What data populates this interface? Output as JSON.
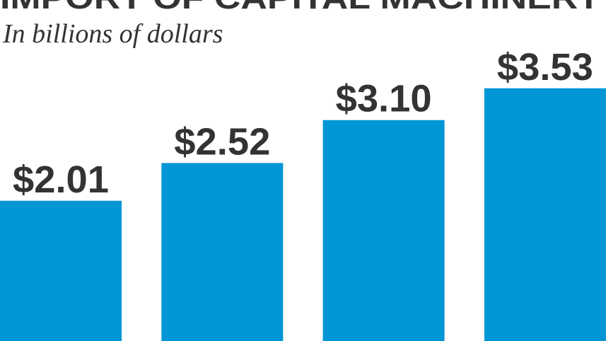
{
  "chart_data": {
    "type": "bar",
    "title": "IMPORT OF CAPITAL MACHINERY",
    "subtitle": "In billions of dollars",
    "values": [
      2.01,
      2.52,
      3.1,
      3.53
    ],
    "value_labels": [
      "$2.01",
      "$2.52",
      "$3.10",
      "$3.53"
    ],
    "color": "#0096d6"
  }
}
